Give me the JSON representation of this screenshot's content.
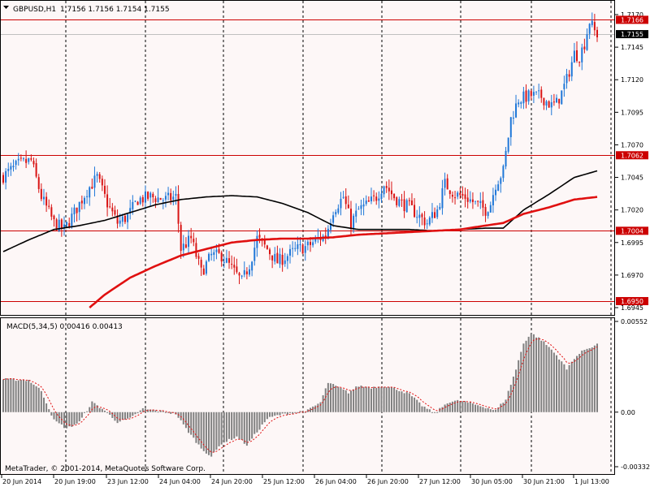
{
  "header": {
    "symbol": "GBPUSD,H1",
    "ohlc": "1.7156 1.7156 1.7154 1.7155",
    "macd_label": "MACD(5,34,5) 0.00416 0.00413",
    "copyright": "MetaTrader, © 2001-2014, MetaQuotes Software Corp."
  },
  "colors": {
    "background": "#ffffff",
    "panel_bg": "#fdf7f7",
    "bull": "#1f77d8",
    "bear": "#d91414",
    "ma_slow": "#000000",
    "ma_fast": "#e01010",
    "macd_hist": "#808080",
    "macd_signal": "#e01010",
    "level_line": "#cc0000"
  },
  "chart_data": [
    {
      "type": "candlestick",
      "symbol": "GBPUSD",
      "timeframe": "H1",
      "ylim": [
        1.6945,
        1.717
      ],
      "y_ticks": [
        "1.7170",
        "1.7145",
        "1.7120",
        "1.7095",
        "1.7070",
        "1.7045",
        "1.7020",
        "1.6995",
        "1.6970",
        "1.6945"
      ],
      "x_ticks": [
        "20 Jun 2014",
        "20 Jun 19:00",
        "23 Jun 12:00",
        "24 Jun 04:00",
        "24 Jun 20:00",
        "25 Jun 12:00",
        "26 Jun 04:00",
        "26 Jun 20:00",
        "27 Jun 12:00",
        "30 Jun 05:00",
        "30 Jun 21:00",
        "1 Jul 13:00"
      ],
      "price_levels": [
        "1.7166",
        "1.7062",
        "1.7004",
        "1.6950"
      ],
      "current_price": "1.7155",
      "close_path": [
        [
          0,
          1.7046
        ],
        [
          6,
          1.7055
        ],
        [
          11,
          1.7058
        ],
        [
          15,
          1.703
        ],
        [
          20,
          1.701
        ],
        [
          24,
          1.7005
        ],
        [
          28,
          1.7018
        ],
        [
          33,
          1.7035
        ],
        [
          37,
          1.7045
        ],
        [
          41,
          1.7025
        ],
        [
          45,
          1.701
        ],
        [
          49,
          1.7015
        ],
        [
          53,
          1.7028
        ],
        [
          58,
          1.703
        ],
        [
          64,
          1.7028
        ],
        [
          68,
          1.703
        ],
        [
          70,
          1.699
        ],
        [
          74,
          1.6998
        ],
        [
          78,
          1.6972
        ],
        [
          82,
          1.6985
        ],
        [
          86,
          1.6985
        ],
        [
          90,
          1.6975
        ],
        [
          94,
          1.6965
        ],
        [
          97,
          1.6978
        ],
        [
          100,
          1.6998
        ],
        [
          104,
          1.699
        ],
        [
          108,
          1.698
        ],
        [
          112,
          1.6985
        ],
        [
          116,
          1.699
        ],
        [
          120,
          1.6992
        ],
        [
          124,
          1.6998
        ],
        [
          127,
          1.7
        ],
        [
          130,
          1.702
        ],
        [
          134,
          1.703
        ],
        [
          137,
          1.701
        ],
        [
          140,
          1.702
        ],
        [
          144,
          1.7025
        ],
        [
          147,
          1.703
        ],
        [
          150,
          1.704
        ],
        [
          154,
          1.703
        ],
        [
          157,
          1.7025
        ],
        [
          160,
          1.7022
        ],
        [
          164,
          1.7015
        ],
        [
          167,
          1.701
        ],
        [
          171,
          1.702
        ],
        [
          174,
          1.704
        ],
        [
          178,
          1.7032
        ],
        [
          182,
          1.703
        ],
        [
          186,
          1.7025
        ],
        [
          190,
          1.702
        ],
        [
          192,
          1.7025
        ],
        [
          194,
          1.704
        ],
        [
          197,
          1.705
        ],
        [
          200,
          1.709
        ],
        [
          203,
          1.7105
        ],
        [
          208,
          1.7108
        ],
        [
          212,
          1.7107
        ],
        [
          216,
          1.71
        ],
        [
          218,
          1.7102
        ],
        [
          220,
          1.711
        ],
        [
          222,
          1.712
        ],
        [
          225,
          1.714
        ],
        [
          227,
          1.7138
        ],
        [
          229,
          1.7148
        ],
        [
          231,
          1.7165
        ],
        [
          233,
          1.7157
        ],
        [
          234,
          1.7155
        ]
      ],
      "ma_slow": [
        [
          0,
          1.6988
        ],
        [
          10,
          1.6997
        ],
        [
          20,
          1.7005
        ],
        [
          30,
          1.7008
        ],
        [
          40,
          1.7012
        ],
        [
          50,
          1.7018
        ],
        [
          60,
          1.7024
        ],
        [
          70,
          1.7028
        ],
        [
          80,
          1.703
        ],
        [
          90,
          1.7031
        ],
        [
          100,
          1.703
        ],
        [
          110,
          1.7025
        ],
        [
          120,
          1.7018
        ],
        [
          130,
          1.7008
        ],
        [
          140,
          1.7005
        ],
        [
          150,
          1.7005
        ],
        [
          160,
          1.7005
        ],
        [
          170,
          1.7004
        ],
        [
          180,
          1.7005
        ],
        [
          190,
          1.7006
        ],
        [
          197,
          1.7006
        ],
        [
          205,
          1.702
        ],
        [
          215,
          1.7032
        ],
        [
          225,
          1.7045
        ],
        [
          234,
          1.705
        ]
      ],
      "ma_fast": [
        [
          34,
          1.6945
        ],
        [
          40,
          1.6955
        ],
        [
          50,
          1.6968
        ],
        [
          60,
          1.6977
        ],
        [
          70,
          1.6985
        ],
        [
          80,
          1.699
        ],
        [
          90,
          1.6995
        ],
        [
          100,
          1.6997
        ],
        [
          110,
          1.6998
        ],
        [
          120,
          1.6998
        ],
        [
          130,
          1.6999
        ],
        [
          140,
          1.7001
        ],
        [
          150,
          1.7002
        ],
        [
          160,
          1.7003
        ],
        [
          170,
          1.7004
        ],
        [
          180,
          1.7005
        ],
        [
          190,
          1.7008
        ],
        [
          197,
          1.701
        ],
        [
          205,
          1.7017
        ],
        [
          215,
          1.7022
        ],
        [
          225,
          1.7028
        ],
        [
          234,
          1.703
        ]
      ]
    },
    {
      "type": "bar",
      "name": "MACD(5,34,5)",
      "values_label": "0.00416 0.00413",
      "ylim": [
        -0.00332,
        0.00552
      ],
      "y_ticks": [
        "0.00552",
        "0.00",
        "-0.00332"
      ],
      "histogram_path": [
        [
          0,
          0.002
        ],
        [
          10,
          0.00195
        ],
        [
          15,
          0.0013
        ],
        [
          20,
          -0.0005
        ],
        [
          25,
          -0.001
        ],
        [
          30,
          -0.0006
        ],
        [
          35,
          0.0006
        ],
        [
          40,
          0.0001
        ],
        [
          45,
          -0.0006
        ],
        [
          50,
          -0.0004
        ],
        [
          55,
          0.0002
        ],
        [
          60,
          0.0001
        ],
        [
          68,
          -0.0001
        ],
        [
          72,
          -0.001
        ],
        [
          78,
          -0.0022
        ],
        [
          82,
          -0.0027
        ],
        [
          86,
          -0.0019
        ],
        [
          92,
          -0.0015
        ],
        [
          96,
          -0.002
        ],
        [
          100,
          -0.0012
        ],
        [
          104,
          -0.0004
        ],
        [
          108,
          -0.0002
        ],
        [
          115,
          0.0
        ],
        [
          120,
          0.0001
        ],
        [
          125,
          0.0006
        ],
        [
          128,
          0.0018
        ],
        [
          132,
          0.0015
        ],
        [
          136,
          0.0012
        ],
        [
          140,
          0.0016
        ],
        [
          145,
          0.0015
        ],
        [
          150,
          0.0016
        ],
        [
          155,
          0.0014
        ],
        [
          160,
          0.0011
        ],
        [
          165,
          0.0004
        ],
        [
          170,
          -0.0001
        ],
        [
          175,
          0.0006
        ],
        [
          180,
          0.0007
        ],
        [
          185,
          0.0005
        ],
        [
          190,
          0.0003
        ],
        [
          194,
          0.0001
        ],
        [
          198,
          0.0008
        ],
        [
          202,
          0.0026
        ],
        [
          205,
          0.0042
        ],
        [
          208,
          0.0048
        ],
        [
          212,
          0.0044
        ],
        [
          216,
          0.0038
        ],
        [
          220,
          0.0031
        ],
        [
          222,
          0.0026
        ],
        [
          225,
          0.0033
        ],
        [
          229,
          0.0038
        ],
        [
          234,
          0.00413
        ]
      ]
    }
  ]
}
